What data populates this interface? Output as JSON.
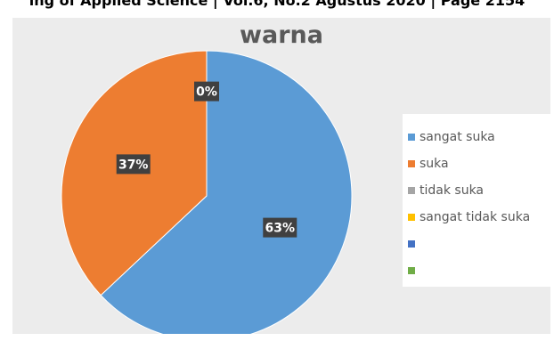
{
  "header": {
    "text": "ing of Applied Science | Vol.6, No.2 Agustus 2020 | Page 2154"
  },
  "chart_data": {
    "type": "pie",
    "title": "warna",
    "categories": [
      "sangat suka",
      "suka",
      "tidak suka",
      "sangat tidak suka",
      "",
      ""
    ],
    "values": [
      63,
      37,
      0,
      0,
      0,
      0
    ],
    "data_labels": [
      "63%",
      "37%",
      "0%",
      "",
      "",
      ""
    ],
    "colors": [
      "#5b9bd5",
      "#ed7d31",
      "#a5a5a5",
      "#ffc000",
      "#4472c4",
      "#70ad47"
    ],
    "legend_position": "right"
  }
}
